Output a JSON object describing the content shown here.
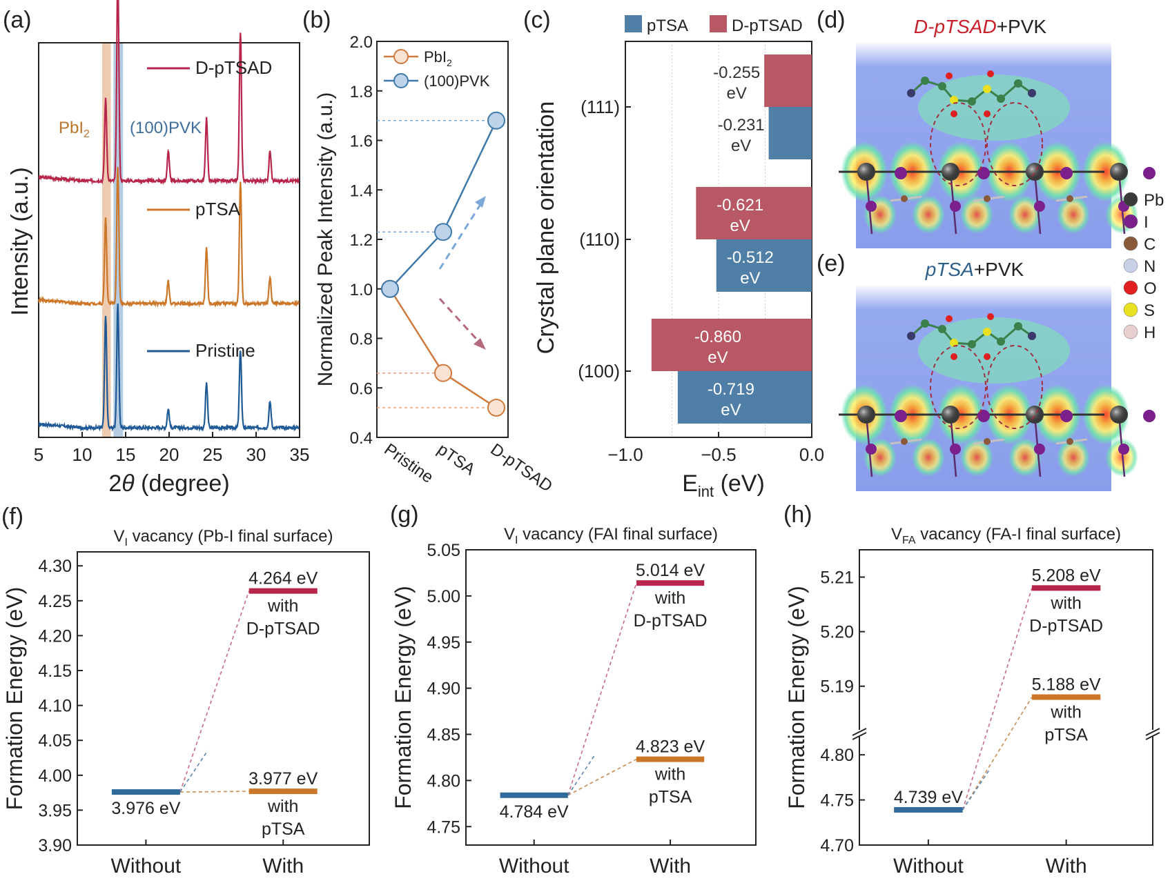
{
  "colors": {
    "pristine": "#1f5a96",
    "ptsa": "#cc7628",
    "dptsad": "#b8254a",
    "bar_ptsa": "#4f7fa6",
    "bar_dptsad": "#b85864",
    "pbi2_band": "#e7b895",
    "pvk_band": "#9bbad8",
    "pvk_line": "#3f79a9",
    "pbi2_line": "#cf7a3c"
  },
  "panel_a": {
    "label": "(a)",
    "xlabel_pre": "2",
    "xlabel_theta": "θ",
    "xlabel_post": " (degree)",
    "ylabel": "Intensity (a.u.)",
    "xticks": [
      "5",
      "10",
      "15",
      "20",
      "25",
      "30",
      "35"
    ],
    "band_pbi2_main": "PbI",
    "band_pbi2_sub": "2",
    "band_pvk": "(100)PVK",
    "chart_data": {
      "type": "line",
      "xlim": [
        5,
        35
      ],
      "series": [
        {
          "name": "D-pTSAD",
          "peaks": [
            [
              12.7,
              0.22
            ],
            [
              14.1,
              0.56
            ],
            [
              19.9,
              0.08
            ],
            [
              24.3,
              0.17
            ],
            [
              28.2,
              0.4
            ],
            [
              31.6,
              0.08
            ]
          ]
        },
        {
          "name": "pTSA",
          "peaks": [
            [
              12.7,
              0.23
            ],
            [
              14.1,
              0.37
            ],
            [
              19.9,
              0.06
            ],
            [
              24.3,
              0.15
            ],
            [
              28.2,
              0.33
            ],
            [
              31.6,
              0.07
            ]
          ]
        },
        {
          "name": "Pristine",
          "peaks": [
            [
              12.7,
              0.3
            ],
            [
              14.1,
              0.33
            ],
            [
              19.9,
              0.05
            ],
            [
              24.3,
              0.12
            ],
            [
              28.2,
              0.21
            ],
            [
              31.6,
              0.07
            ]
          ]
        }
      ]
    }
  },
  "panel_b": {
    "label": "(b)",
    "ylabel": "Normalized Peak Intensity (a.u.)",
    "yticks": [
      "0.4",
      "0.6",
      "0.8",
      "1.0",
      "1.2",
      "1.4",
      "1.6",
      "1.8",
      "2.0"
    ],
    "legend_pbi2_main": "PbI",
    "legend_pbi2_sub": "2",
    "legend_pvk": "(100)PVK",
    "chart_data": {
      "type": "line",
      "categories": [
        "Pristine",
        "pTSA",
        "D-pTSAD"
      ],
      "ylim": [
        0.4,
        2.0
      ],
      "series": [
        {
          "name": "PbI2",
          "values": [
            1.0,
            0.66,
            0.52
          ]
        },
        {
          "name": "(100)PVK",
          "values": [
            1.0,
            1.23,
            1.68
          ]
        }
      ]
    }
  },
  "panel_c": {
    "label": "(c)",
    "xlabel_main": "E",
    "xlabel_sub": "int",
    "xlabel_post": " (eV)",
    "ylabel": "Crystal plane orientation",
    "xticks": [
      "−1.0",
      "−0.5",
      "0.0"
    ],
    "legend_ptsa": "pTSA",
    "legend_dptsad": "D-pTSAD",
    "unit": "eV",
    "chart_data": {
      "type": "bar",
      "orientation": "horizontal",
      "categories": [
        "(111)",
        "(110)",
        "(100)"
      ],
      "xlim": [
        -1.0,
        0.0
      ],
      "series": [
        {
          "name": "D-pTSAD",
          "values": [
            -0.255,
            -0.621,
            -0.86
          ],
          "labels": [
            "-0.255",
            "-0.621",
            "-0.860"
          ]
        },
        {
          "name": "pTSA",
          "values": [
            -0.231,
            -0.512,
            -0.719
          ],
          "labels": [
            "-0.231",
            "-0.512",
            "-0.719"
          ]
        }
      ]
    }
  },
  "panel_d": {
    "label": "(d)",
    "title_italic": "D-pTSAD",
    "title_rest": "+PVK"
  },
  "panel_e": {
    "label": "(e)",
    "title_italic": "pTSA",
    "title_rest": "+PVK"
  },
  "atom_legend": [
    {
      "symbol": "Pb",
      "color": "#3a3a3a"
    },
    {
      "symbol": "I",
      "color": "#7a1f8c"
    },
    {
      "symbol": "C",
      "color": "#8a5a3a"
    },
    {
      "symbol": "N",
      "color": "#c8d0e8"
    },
    {
      "symbol": "O",
      "color": "#e02020"
    },
    {
      "symbol": "S",
      "color": "#e8e020"
    },
    {
      "symbol": "H",
      "color": "#e8d0d0"
    }
  ],
  "panels_fgh": [
    {
      "label": "(f)",
      "title_main": "V",
      "title_sub": "I",
      "title_rest": " vacancy (Pb-I final surface)",
      "ylabel": "Formation Energy (eV)",
      "xcats": [
        "Without",
        "With"
      ],
      "yticks": [
        "3.90",
        "3.95",
        "4.00",
        "4.05",
        "4.10",
        "4.15",
        "4.20",
        "4.25",
        "4.30"
      ],
      "chart_data": {
        "type": "bar",
        "ylim": [
          3.9,
          4.32
        ],
        "without": {
          "value": 3.976,
          "label": "3.976 eV"
        },
        "with_dptsad": {
          "value": 4.264,
          "label": "4.264 eV",
          "l1": "with",
          "l2": "D-pTSAD"
        },
        "with_ptsa": {
          "value": 3.977,
          "label": "3.977 eV",
          "l1": "with",
          "l2": "pTSA"
        }
      }
    },
    {
      "label": "(g)",
      "title_main": "V",
      "title_sub": "I",
      "title_rest": " vacancy (FAI final surface)",
      "ylabel": "Formation Energy (eV)",
      "xcats": [
        "Without",
        "With"
      ],
      "yticks": [
        "4.75",
        "4.80",
        "4.85",
        "4.90",
        "4.95",
        "5.00",
        "5.05"
      ],
      "chart_data": {
        "type": "bar",
        "ylim": [
          4.73,
          5.05
        ],
        "without": {
          "value": 4.784,
          "label": "4.784 eV"
        },
        "with_dptsad": {
          "value": 5.014,
          "label": "5.014 eV",
          "l1": "with",
          "l2": "D-pTSAD"
        },
        "with_ptsa": {
          "value": 4.823,
          "label": "4.823 eV",
          "l1": "with",
          "l2": "pTSA"
        }
      }
    },
    {
      "label": "(h)",
      "title_main": "V",
      "title_sub": "FA",
      "title_rest": " vacancy (FA-I final surface)",
      "ylabel": "Formation Energy (eV)",
      "xcats": [
        "Without",
        "With"
      ],
      "yticks_lower": [
        "4.70",
        "4.75",
        "4.80"
      ],
      "yticks_upper": [
        "5.19",
        "5.20",
        "5.21"
      ],
      "chart_data": {
        "type": "bar",
        "axis_break": true,
        "ylim_lower": [
          4.7,
          4.82
        ],
        "ylim_upper": [
          5.182,
          5.215
        ],
        "without": {
          "value": 4.739,
          "label": "4.739 eV"
        },
        "with_dptsad": {
          "value": 5.208,
          "label": "5.208 eV",
          "l1": "with",
          "l2": "D-pTSAD"
        },
        "with_ptsa": {
          "value": 5.188,
          "label": "5.188 eV",
          "l1": "with",
          "l2": "pTSA"
        }
      }
    }
  ]
}
